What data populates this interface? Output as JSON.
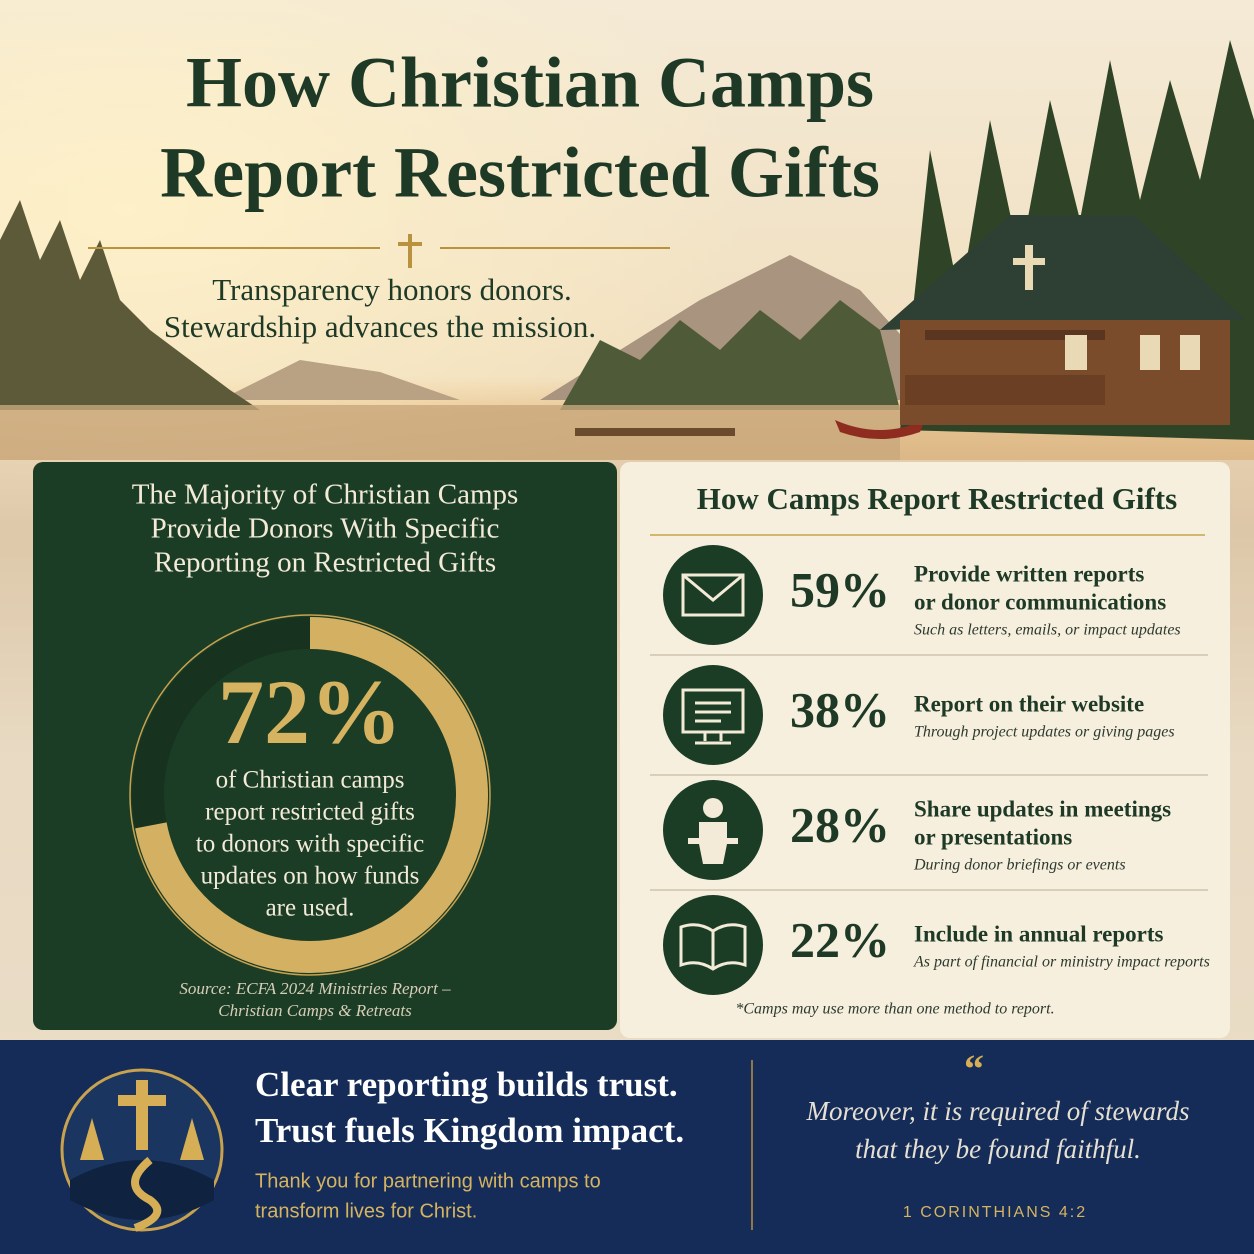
{
  "header": {
    "title": [
      "How Christian Camps",
      "Report Restricted Gifts"
    ],
    "subtitle": [
      "Transparency honors donors.",
      "Stewardship advances the mission."
    ]
  },
  "highlight": {
    "heading": [
      "The Majority of Christian Camps",
      "Provide Donors With Specific",
      "Reporting on Restricted Gifts"
    ],
    "donut": {
      "value": 72,
      "label": "72%"
    },
    "description": [
      "of Christian camps",
      "report restricted gifts",
      "to donors with specific",
      "updates on how funds",
      "are used."
    ],
    "source": [
      "Source: ECFA 2024 Ministries Report –",
      "Christian Camps & Retreats"
    ]
  },
  "methods": {
    "heading": "How Camps Report Restricted Gifts",
    "items": [
      {
        "percent": "59%",
        "label": [
          "Provide written reports",
          "or donor communications"
        ],
        "detail": "Such as letters, emails, or impact updates"
      },
      {
        "percent": "38%",
        "label": [
          "Report on their website"
        ],
        "detail": "Through project updates or giving pages"
      },
      {
        "percent": "28%",
        "label": [
          "Share updates in meetings",
          "or presentations"
        ],
        "detail": "During donor briefings or events"
      },
      {
        "percent": "22%",
        "label": [
          "Include in annual reports"
        ],
        "detail": "As part of financial or ministry impact reports"
      }
    ],
    "note": "*Camps may use more than one method to report."
  },
  "footer": {
    "message": [
      "Clear reporting builds trust.",
      "Trust fuels Kingdom impact."
    ],
    "thanks": [
      "Thank you for partnering with camps to",
      "transform lives for Christ."
    ],
    "quote_mark": "“",
    "quote": [
      "Moreover, it is required of stewards",
      "that they be found faithful."
    ],
    "reference": "1 CORINTHIANS 4:2"
  }
}
